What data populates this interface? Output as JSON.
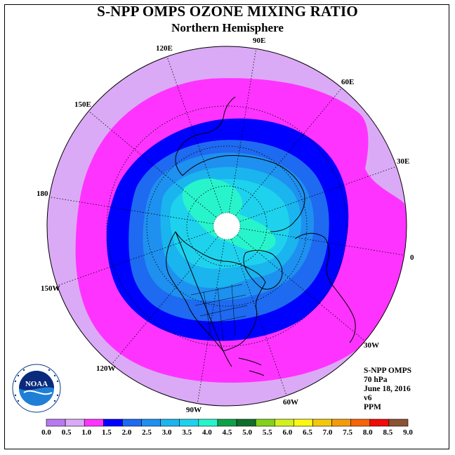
{
  "title": "S-NPP OMPS OZONE MIXING RATIO",
  "subtitle": "Northern Hemisphere",
  "info": {
    "instrument": "S-NPP OMPS",
    "level": "70 hPa",
    "date": "June 18, 2016",
    "version": "v6",
    "units": "PPM"
  },
  "longitude_labels": {
    "lon_90e": "90E",
    "lon_60e": "60E",
    "lon_30e": "30E",
    "lon_0": "0",
    "lon_30w": "30W",
    "lon_60w": "60W",
    "lon_90w": "90W",
    "lon_120w": "120W",
    "lon_150w": "150W",
    "lon_180": "180",
    "lon_150e": "150E",
    "lon_120e": "120E"
  },
  "colorbar": {
    "ticks": [
      "0.0",
      "0.5",
      "1.0",
      "1.5",
      "2.0",
      "2.5",
      "3.0",
      "3.5",
      "4.0",
      "4.5",
      "5.0",
      "5.5",
      "6.0",
      "6.5",
      "7.0",
      "7.5",
      "8.0",
      "8.5",
      "9.0"
    ],
    "colors": [
      "#b978f0",
      "#dbaaf6",
      "#ff33ff",
      "#0000ff",
      "#1e6af0",
      "#1e90f0",
      "#1ab4ee",
      "#1ed2ee",
      "#28f4cc",
      "#10a048",
      "#0f6e2c",
      "#82d21c",
      "#d2f020",
      "#fcf814",
      "#f2c80a",
      "#f59b0a",
      "#f5640a",
      "#f00a0a",
      "#8c5232"
    ]
  },
  "logo": {
    "text": "NOAA"
  },
  "ozone_contours": [
    {
      "level": "1.0",
      "color": "#ff33ff"
    },
    {
      "level": "1.5",
      "color": "#0000ff"
    },
    {
      "level": "2.0",
      "color": "#1e6af0"
    },
    {
      "level": "2.5",
      "color": "#1e90f0"
    },
    {
      "level": "3.0",
      "color": "#1ab4ee"
    },
    {
      "level": "3.5",
      "color": "#1ed2ee"
    },
    {
      "level": "4.0",
      "color": "#28f4cc"
    }
  ]
}
